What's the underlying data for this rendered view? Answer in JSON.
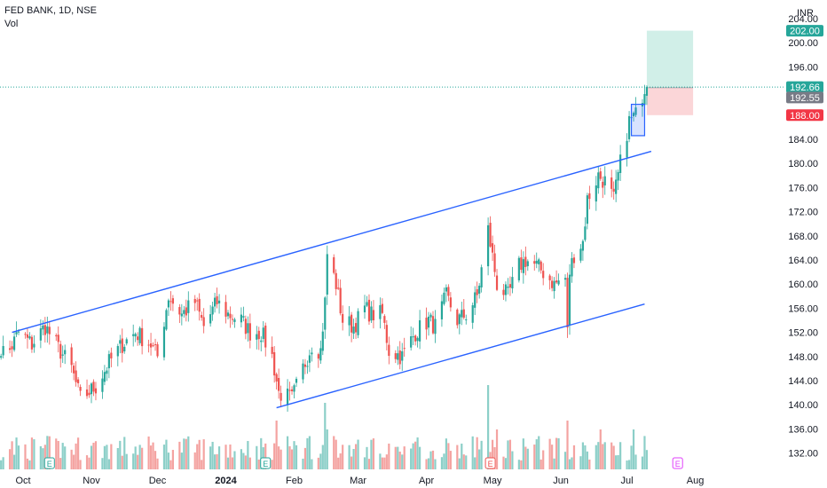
{
  "header": {
    "title": "FED BANK, 1D, NSE",
    "volume_label": "Vol",
    "currency": "INR"
  },
  "colors": {
    "up": "#26a69a",
    "down": "#ef5350",
    "vol_up": "#8ccfc8",
    "vol_down": "#f4a3a1",
    "channel": "#2962ff",
    "target_zone": "#d1efe8",
    "stop_zone": "#fbd6d8",
    "last_price_line": "#26a69a",
    "badge_target": "#26a69a",
    "badge_current": "#26a69a",
    "badge_entry": "#787b86",
    "badge_stop": "#f23645",
    "earnings_green": "#26a69a",
    "earnings_red": "#ef5350",
    "earnings_purple": "#e040fb"
  },
  "chart_data": {
    "type": "candlestick",
    "price_axis": {
      "ylim": [
        130,
        205
      ],
      "ticks": [
        "204.00",
        "200.00",
        "196.00",
        "192.00",
        "188.00",
        "184.00",
        "180.00",
        "176.00",
        "172.00",
        "168.00",
        "164.00",
        "160.00",
        "156.00",
        "152.00",
        "148.00",
        "144.00",
        "140.00",
        "136.00",
        "132.00"
      ],
      "tick_values": [
        204,
        200,
        196,
        192,
        188,
        184,
        180,
        176,
        172,
        168,
        164,
        160,
        156,
        152,
        148,
        144,
        140,
        136,
        132
      ]
    },
    "time_axis": {
      "labels": [
        {
          "text": "Oct",
          "date": "2023-10-01",
          "bold": false
        },
        {
          "text": "Nov",
          "date": "2023-11-01",
          "bold": false
        },
        {
          "text": "Dec",
          "date": "2023-12-01",
          "bold": false
        },
        {
          "text": "2024",
          "date": "2024-01-01",
          "bold": true
        },
        {
          "text": "Feb",
          "date": "2024-02-01",
          "bold": false
        },
        {
          "text": "Mar",
          "date": "2024-03-01",
          "bold": false
        },
        {
          "text": "Apr",
          "date": "2024-04-01",
          "bold": false
        },
        {
          "text": "May",
          "date": "2024-05-01",
          "bold": false
        },
        {
          "text": "Jun",
          "date": "2024-06-01",
          "bold": false
        },
        {
          "text": "Jul",
          "date": "2024-07-01",
          "bold": false
        },
        {
          "text": "Aug",
          "date": "2024-08-01",
          "bold": false
        }
      ]
    },
    "anchors": [
      [
        "2023-09-25",
        149
      ],
      [
        "2023-09-29",
        152
      ],
      [
        "2023-10-05",
        150
      ],
      [
        "2023-10-11",
        153
      ],
      [
        "2023-10-16",
        150
      ],
      [
        "2023-10-23",
        146
      ],
      [
        "2023-10-27",
        141
      ],
      [
        "2023-11-03",
        143
      ],
      [
        "2023-11-09",
        147
      ],
      [
        "2023-11-15",
        150
      ],
      [
        "2023-11-21",
        152
      ],
      [
        "2023-11-28",
        150
      ],
      [
        "2023-12-01",
        148
      ],
      [
        "2023-12-06",
        158
      ],
      [
        "2023-12-12",
        155
      ],
      [
        "2023-12-18",
        157
      ],
      [
        "2023-12-22",
        153
      ],
      [
        "2023-12-28",
        157
      ],
      [
        "2024-01-02",
        155
      ],
      [
        "2024-01-08",
        154
      ],
      [
        "2024-01-12",
        152
      ],
      [
        "2024-01-17",
        152
      ],
      [
        "2024-01-22",
        148
      ],
      [
        "2024-01-25",
        142
      ],
      [
        "2024-01-31",
        141
      ],
      [
        "2024-02-05",
        146
      ],
      [
        "2024-02-09",
        150
      ],
      [
        "2024-02-13",
        149
      ],
      [
        "2024-02-15",
        157
      ],
      [
        "2024-02-16",
        165
      ],
      [
        "2024-02-20",
        160
      ],
      [
        "2024-02-23",
        154
      ],
      [
        "2024-02-28",
        153
      ],
      [
        "2024-03-04",
        156
      ],
      [
        "2024-03-07",
        155
      ],
      [
        "2024-03-12",
        155
      ],
      [
        "2024-03-15",
        149
      ],
      [
        "2024-03-21",
        148
      ],
      [
        "2024-03-27",
        152
      ],
      [
        "2024-04-02",
        154
      ],
      [
        "2024-04-05",
        153
      ],
      [
        "2024-04-10",
        158
      ],
      [
        "2024-04-15",
        154
      ],
      [
        "2024-04-19",
        155
      ],
      [
        "2024-04-24",
        158
      ],
      [
        "2024-04-29",
        169
      ],
      [
        "2024-05-03",
        160
      ],
      [
        "2024-05-08",
        158
      ],
      [
        "2024-05-13",
        163
      ],
      [
        "2024-05-16",
        164
      ],
      [
        "2024-05-21",
        163
      ],
      [
        "2024-05-24",
        162
      ],
      [
        "2024-05-29",
        160
      ],
      [
        "2024-06-03",
        161
      ],
      [
        "2024-06-04",
        152
      ],
      [
        "2024-06-05",
        162
      ],
      [
        "2024-06-07",
        165
      ],
      [
        "2024-06-11",
        167
      ],
      [
        "2024-06-13",
        174
      ],
      [
        "2024-06-18",
        178
      ],
      [
        "2024-06-21",
        177
      ],
      [
        "2024-06-25",
        174
      ],
      [
        "2024-06-28",
        180
      ],
      [
        "2024-07-02",
        187
      ],
      [
        "2024-07-05",
        188
      ],
      [
        "2024-07-09",
        192.66
      ]
    ],
    "volume_highlights": [
      {
        "date": "2024-01-24",
        "ratio": 0.55
      },
      {
        "date": "2024-02-15",
        "ratio": 0.75
      },
      {
        "date": "2024-04-29",
        "ratio": 0.95
      },
      {
        "date": "2024-02-16",
        "ratio": 0.45
      },
      {
        "date": "2024-06-04",
        "ratio": 0.55
      },
      {
        "date": "2024-05-03",
        "ratio": 0.45
      },
      {
        "date": "2024-07-04",
        "ratio": 0.45
      },
      {
        "date": "2024-06-19",
        "ratio": 0.45
      }
    ],
    "channel_upper": [
      [
        "2023-09-26",
        152.0
      ],
      [
        "2024-07-12",
        182.0
      ]
    ],
    "channel_lower": [
      [
        "2024-01-24",
        139.5
      ],
      [
        "2024-07-09",
        156.7
      ]
    ],
    "consolidation_box": {
      "start": "2024-07-03",
      "end": "2024-07-09",
      "low": 184.6,
      "high": 189.8
    },
    "position": {
      "start": "2024-07-10",
      "end": "2024-07-31",
      "entry": 192.55,
      "target": 202.0,
      "stop": 188.0
    },
    "last_price": 192.66,
    "price_badges": [
      {
        "label": "202.00",
        "value": 202.0,
        "role": "target"
      },
      {
        "label": "192.66",
        "value": 192.66,
        "role": "current"
      },
      {
        "label": "192.55",
        "value": 192.55,
        "role": "entry"
      },
      {
        "label": "188.00",
        "value": 188.0,
        "role": "stop"
      }
    ],
    "earnings_markers": [
      {
        "date": "2023-10-13",
        "label": "E",
        "type": "earnings_green"
      },
      {
        "date": "2024-01-19",
        "label": "E",
        "type": "earnings_green"
      },
      {
        "date": "2024-04-30",
        "label": "E",
        "type": "earnings_red"
      },
      {
        "date": "2024-07-24",
        "label": "E",
        "type": "earnings_purple"
      }
    ]
  }
}
